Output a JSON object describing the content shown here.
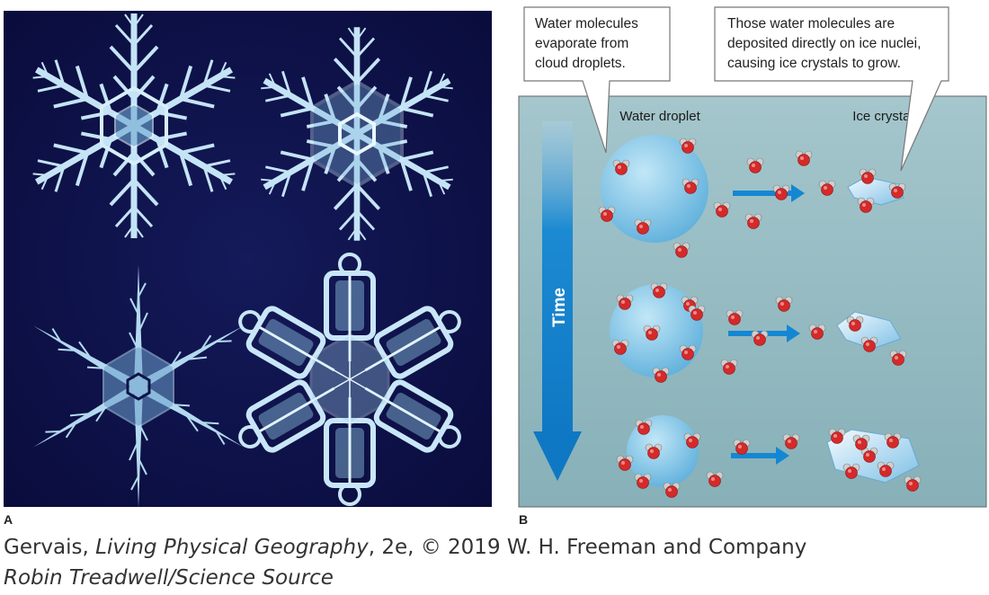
{
  "panel_a": {
    "label": "A",
    "colors": {
      "background": "#0d0f45",
      "crystal": "#bfe2f5"
    }
  },
  "panel_b": {
    "label": "B",
    "callout_left": {
      "line1": "Water molecules",
      "line2": "evaporate from",
      "line3": "cloud droplets."
    },
    "callout_right": {
      "line1": "Those water molecules are",
      "line2": "deposited directly on ice nuclei,",
      "line3": "causing ice crystals to grow."
    },
    "label_droplet": "Water droplet",
    "label_crystal": "Ice crystal",
    "time_label": "Time",
    "colors": {
      "background": "#95bcc2",
      "arrow": "#1487d3",
      "droplet": "#7cc5e8",
      "oxygen": "#d42a2a",
      "hydrogen": "#c9c9c9"
    }
  },
  "credits": {
    "line1_prefix": "Gervais, ",
    "line1_title": "Living Physical Geography",
    "line1_suffix": ", 2e, © 2019 W. H. Freeman and Company",
    "line2": "Robin Treadwell/Science Source"
  }
}
